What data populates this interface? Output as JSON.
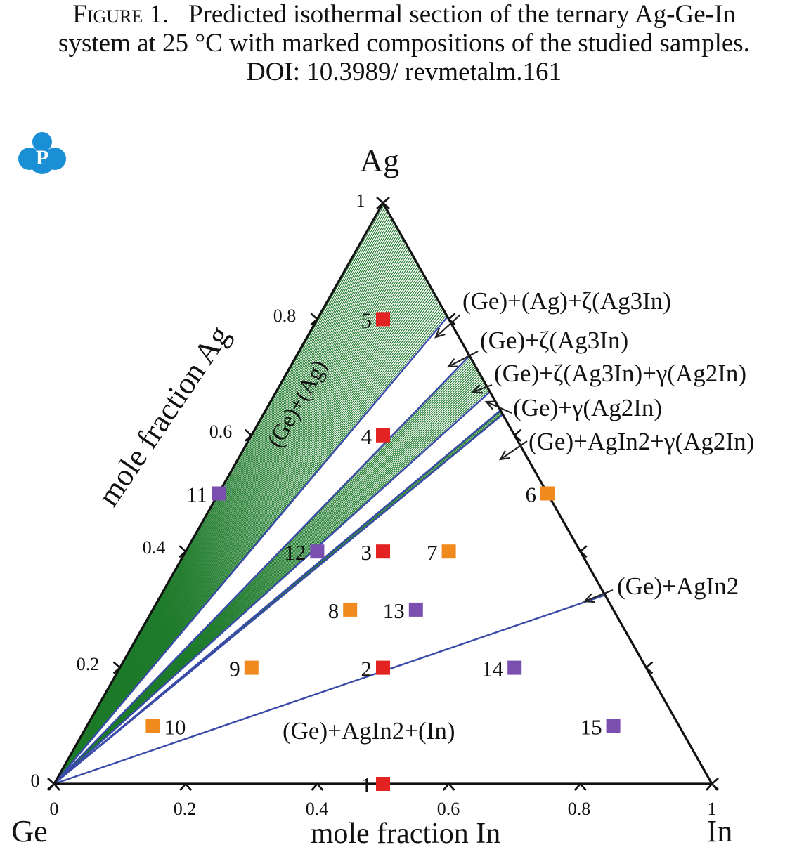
{
  "caption": {
    "figure_label": "Figure 1.",
    "text": "Predicted isothermal section of the ternary Ag-Ge-In system at 25 °C with marked compositions of the studied samples. DOI: 10.3989/ revmetalm.161"
  },
  "logo": {
    "icon": "publisher-p-logo",
    "letter": "P",
    "color": "#1a8fd6"
  },
  "colors": {
    "triangle": "#111111",
    "tie_line": "#3a4aa8",
    "hatch": "#1d7a2a",
    "sample_red": "#e32222",
    "sample_orange": "#f08a1e",
    "sample_purple": "#7b4fb0"
  },
  "chart_data": {
    "type": "ternary",
    "vertices": {
      "top": "Ag",
      "left": "Ge",
      "right": "In"
    },
    "axis_labels": {
      "left": "mole fraction Ag",
      "bottom": "mole fraction In"
    },
    "ag_ticks": [
      "0",
      "0.2",
      "0.4",
      "0.6",
      "0.8",
      "1"
    ],
    "in_ticks": [
      "0",
      "0.2",
      "0.4",
      "0.6",
      "0.8",
      "1"
    ],
    "region_labels": [
      {
        "text": "(Ge)+(Ag)"
      },
      {
        "text": "(Ge)+(Ag)+ζ(Ag3In)"
      },
      {
        "text": "(Ge)+ζ(Ag3In)"
      },
      {
        "text": "(Ge)+ζ(Ag3In)+γ(Ag2In)"
      },
      {
        "text": "(Ge)+γ(Ag2In)"
      },
      {
        "text": "(Ge)+AgIn2+γ(Ag2In)"
      },
      {
        "text": "(Ge)+AgIn2"
      },
      {
        "text": "(Ge)+AgIn2+(In)"
      }
    ],
    "boundary_points_in_frac": {
      "ag_end": 0.196,
      "zeta_start": 0.263,
      "zeta_end": 0.325,
      "gamma_start": 0.357,
      "gamma_end": 0.364,
      "agin2": 0.675
    },
    "samples": [
      {
        "id": "1",
        "Ag": 0.0,
        "In": 0.5,
        "group": "red"
      },
      {
        "id": "2",
        "Ag": 0.2,
        "In": 0.4,
        "group": "red"
      },
      {
        "id": "3",
        "Ag": 0.4,
        "In": 0.3,
        "group": "red"
      },
      {
        "id": "4",
        "Ag": 0.6,
        "In": 0.2,
        "group": "red"
      },
      {
        "id": "5",
        "Ag": 0.8,
        "In": 0.1,
        "group": "red"
      },
      {
        "id": "6",
        "Ag": 0.5,
        "In": 0.5,
        "group": "orange"
      },
      {
        "id": "7",
        "Ag": 0.4,
        "In": 0.4,
        "group": "orange"
      },
      {
        "id": "8",
        "Ag": 0.3,
        "In": 0.3,
        "group": "orange"
      },
      {
        "id": "9",
        "Ag": 0.2,
        "In": 0.2,
        "group": "orange"
      },
      {
        "id": "10",
        "Ag": 0.1,
        "In": 0.1,
        "group": "orange"
      },
      {
        "id": "11",
        "Ag": 0.5,
        "In": 0.0,
        "group": "purple"
      },
      {
        "id": "12",
        "Ag": 0.4,
        "In": 0.2,
        "group": "purple"
      },
      {
        "id": "13",
        "Ag": 0.3,
        "In": 0.4,
        "group": "purple"
      },
      {
        "id": "14",
        "Ag": 0.2,
        "In": 0.6,
        "group": "purple"
      },
      {
        "id": "15",
        "Ag": 0.1,
        "In": 0.8,
        "group": "purple"
      }
    ]
  }
}
